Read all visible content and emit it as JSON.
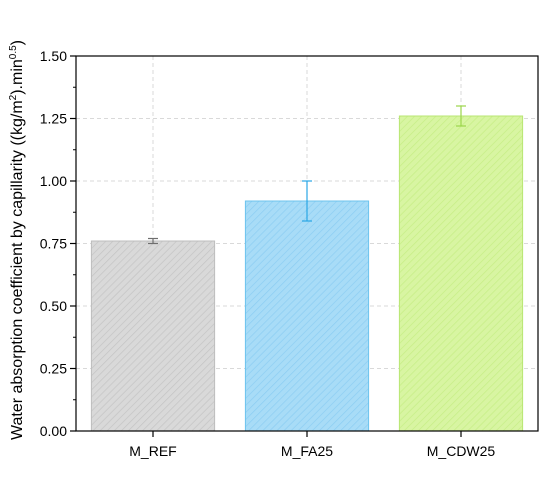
{
  "chart_data": {
    "type": "bar",
    "title": "",
    "xlabel": "",
    "ylabel": {
      "main": "Water absorption coefficient by capillarity ((kg/m",
      "sup1": "2",
      "mid": ").min",
      "sup2": "0.5",
      "end": ")"
    },
    "ylim": [
      0,
      1.5
    ],
    "yticks": [
      "0.00",
      "0.25",
      "0.50",
      "0.75",
      "1.00",
      "1.25",
      "1.50"
    ],
    "ytick_values": [
      0,
      0.25,
      0.5,
      0.75,
      1.0,
      1.25,
      1.5
    ],
    "categories": [
      "M_REF",
      "M_FA25",
      "M_CDW25"
    ],
    "values": [
      0.76,
      0.92,
      1.26
    ],
    "errors": [
      0.01,
      0.08,
      0.04
    ],
    "colors": {
      "fills": [
        "#d9d9d9",
        "#a8dcf7",
        "#d8f5a2"
      ],
      "strokes": [
        "#bdbdbd",
        "#6cc3ee",
        "#b8e673"
      ],
      "hatch": [
        "#c4c4c4",
        "#8ccdf2",
        "#c6ee85"
      ],
      "errorbars": [
        "#6e6e6e",
        "#2aa7e6",
        "#9bd64a"
      ],
      "grid": "#d9d9d9"
    },
    "grid": true,
    "legend": "none"
  }
}
